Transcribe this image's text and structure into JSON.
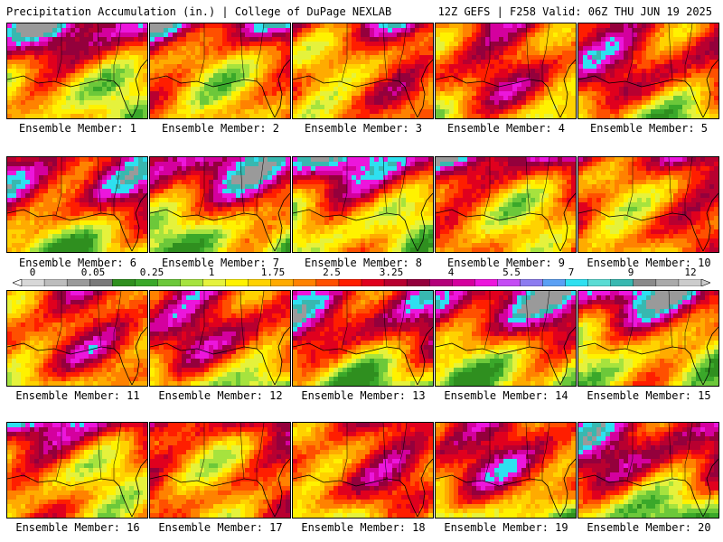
{
  "header": {
    "left": "Precipitation Accumulation (in.) | College of DuPage NEXLAB",
    "right": "12Z GEFS | F258 Valid: 06Z THU JUN 19 2025"
  },
  "members": [
    "Ensemble Member: 1",
    "Ensemble Member: 2",
    "Ensemble Member: 3",
    "Ensemble Member: 4",
    "Ensemble Member: 5",
    "Ensemble Member: 6",
    "Ensemble Member: 7",
    "Ensemble Member: 8",
    "Ensemble Member: 9",
    "Ensemble Member: 10",
    "Ensemble Member: 11",
    "Ensemble Member: 12",
    "Ensemble Member: 13",
    "Ensemble Member: 14",
    "Ensemble Member: 15",
    "Ensemble Member: 16",
    "Ensemble Member: 17",
    "Ensemble Member: 18",
    "Ensemble Member: 19",
    "Ensemble Member: 20"
  ],
  "colorbar": {
    "labels": [
      "0",
      "0.05",
      "0.25",
      "1",
      "1.75",
      "2.5",
      "3.25",
      "4",
      "5.5",
      "7",
      "9",
      "12"
    ],
    "colors": [
      "#d8d8d8",
      "#bdbdbd",
      "#9a9a9a",
      "#7a7a7a",
      "#2f8f1f",
      "#3aa82a",
      "#6cc83a",
      "#a6e33e",
      "#e5f23c",
      "#fff200",
      "#ffd200",
      "#ffab00",
      "#ff8200",
      "#ff5000",
      "#ff1e00",
      "#e0001e",
      "#b80030",
      "#94003c",
      "#b4007a",
      "#d4009e",
      "#ec16dc",
      "#c44cf4",
      "#8c7cf0",
      "#5aa0f4",
      "#2ee0f0",
      "#5adcd4",
      "#38b8b0",
      "#8a8a8a",
      "#aaaaaa",
      "#cccccc"
    ]
  }
}
